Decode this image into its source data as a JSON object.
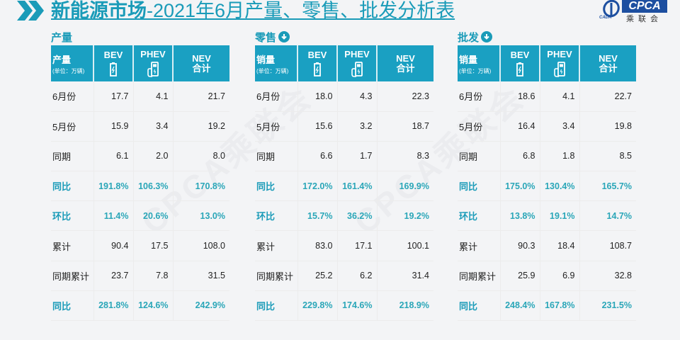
{
  "header": {
    "title_bold": "新能源市场",
    "title_rest": "-2021年6月产量、零售、批发分析表",
    "logo": {
      "brand": "CPCA",
      "cn": "乘联会",
      "small": "CADA"
    }
  },
  "colors": {
    "accent": "#1a9bb8",
    "header_bg": "#1aa0c2",
    "pct_text": "#2aa6b8",
    "logo_blue": "#1d4fa0"
  },
  "columns": {
    "bev": "BEV",
    "phev": "PHEV",
    "nev_line1": "NEV",
    "nev_line2": "合计"
  },
  "sections": [
    {
      "title": "产量",
      "has_icon": false,
      "header_label": "产量",
      "unit": "(单位：万辆)",
      "rows": [
        {
          "label": "6月份",
          "bev": "17.7",
          "phev": "4.1",
          "nev": "21.7",
          "pct": false
        },
        {
          "label": "5月份",
          "bev": "15.9",
          "phev": "3.4",
          "nev": "19.2",
          "pct": false
        },
        {
          "label": "同期",
          "bev": "6.1",
          "phev": "2.0",
          "nev": "8.0",
          "pct": false
        },
        {
          "label": "同比",
          "bev": "191.8%",
          "phev": "106.3%",
          "nev": "170.8%",
          "pct": true
        },
        {
          "label": "环比",
          "bev": "11.4%",
          "phev": "20.6%",
          "nev": "13.0%",
          "pct": true
        },
        {
          "label": "累计",
          "bev": "90.4",
          "phev": "17.5",
          "nev": "108.0",
          "pct": false
        },
        {
          "label": "同期累计",
          "bev": "23.7",
          "phev": "7.8",
          "nev": "31.5",
          "pct": false
        },
        {
          "label": "同比",
          "bev": "281.8%",
          "phev": "124.6%",
          "nev": "242.9%",
          "pct": true
        }
      ]
    },
    {
      "title": "零售",
      "has_icon": true,
      "header_label": "销量",
      "unit": "(单位：万辆)",
      "rows": [
        {
          "label": "6月份",
          "bev": "18.0",
          "phev": "4.3",
          "nev": "22.3",
          "pct": false
        },
        {
          "label": "5月份",
          "bev": "15.6",
          "phev": "3.2",
          "nev": "18.7",
          "pct": false
        },
        {
          "label": "同期",
          "bev": "6.6",
          "phev": "1.7",
          "nev": "8.3",
          "pct": false
        },
        {
          "label": "同比",
          "bev": "172.0%",
          "phev": "161.4%",
          "nev": "169.9%",
          "pct": true
        },
        {
          "label": "环比",
          "bev": "15.7%",
          "phev": "36.2%",
          "nev": "19.2%",
          "pct": true
        },
        {
          "label": "累计",
          "bev": "83.0",
          "phev": "17.1",
          "nev": "100.1",
          "pct": false
        },
        {
          "label": "同期累计",
          "bev": "25.2",
          "phev": "6.2",
          "nev": "31.4",
          "pct": false
        },
        {
          "label": "同比",
          "bev": "229.8%",
          "phev": "174.6%",
          "nev": "218.9%",
          "pct": true
        }
      ]
    },
    {
      "title": "批发",
      "has_icon": true,
      "header_label": "销量",
      "unit": "(单位：万辆)",
      "rows": [
        {
          "label": "6月份",
          "bev": "18.6",
          "phev": "4.1",
          "nev": "22.7",
          "pct": false
        },
        {
          "label": "5月份",
          "bev": "16.4",
          "phev": "3.4",
          "nev": "19.8",
          "pct": false
        },
        {
          "label": "同期",
          "bev": "6.8",
          "phev": "1.8",
          "nev": "8.5",
          "pct": false
        },
        {
          "label": "同比",
          "bev": "175.0%",
          "phev": "130.4%",
          "nev": "165.7%",
          "pct": true
        },
        {
          "label": "环比",
          "bev": "13.8%",
          "phev": "19.1%",
          "nev": "14.7%",
          "pct": true
        },
        {
          "label": "累计",
          "bev": "90.3",
          "phev": "18.4",
          "nev": "108.7",
          "pct": false
        },
        {
          "label": "同期累计",
          "bev": "25.9",
          "phev": "6.9",
          "nev": "32.8",
          "pct": false
        },
        {
          "label": "同比",
          "bev": "248.4%",
          "phev": "167.8%",
          "nev": "231.5%",
          "pct": true
        }
      ]
    }
  ],
  "watermark": "CPCA乘联会"
}
